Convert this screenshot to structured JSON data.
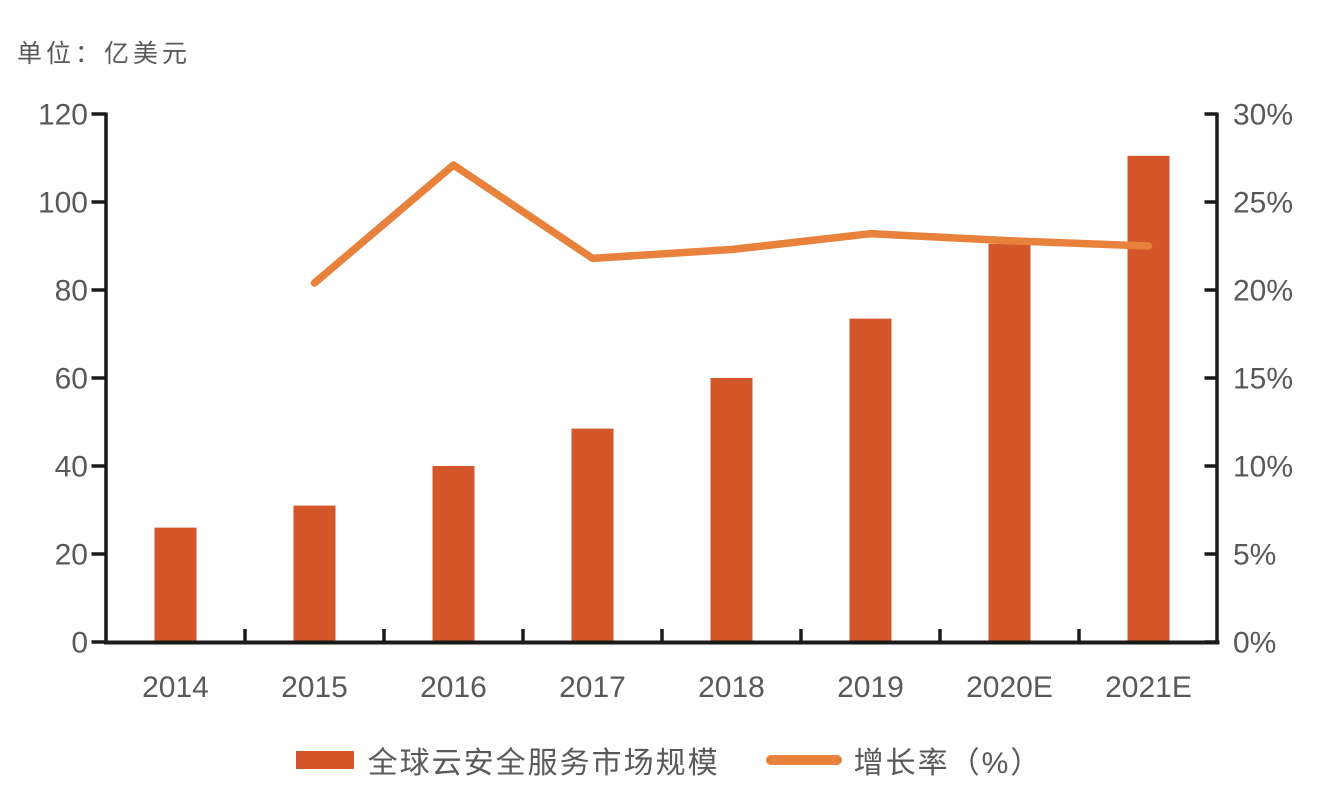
{
  "page": {
    "background": "#ffffff"
  },
  "unit_label": "单位：亿美元",
  "legend": {
    "bar_label": "全球云安全服务市场规模",
    "line_label": "增长率（%）"
  },
  "chart_data": {
    "type": "combo",
    "subtype": "bar+line",
    "title": "",
    "unit": "亿美元",
    "categories": [
      "2014",
      "2015",
      "2016",
      "2017",
      "2018",
      "2019",
      "2020E",
      "2021E"
    ],
    "series": [
      {
        "name": "全球云安全服务市场规模",
        "type": "bar",
        "axis": "left",
        "color": "#d4572b",
        "values": [
          26,
          31,
          40,
          48.5,
          60,
          73.5,
          90.5,
          110.5
        ]
      },
      {
        "name": "增长率（%）",
        "type": "line",
        "axis": "right",
        "color": "#e8813c",
        "values": [
          null,
          20.4,
          27.1,
          21.8,
          22.3,
          23.2,
          22.8,
          22.5
        ]
      }
    ],
    "left_axis": {
      "min": 0,
      "max": 120,
      "step": 20,
      "tick_labels": [
        "0",
        "20",
        "40",
        "60",
        "80",
        "100",
        "120"
      ]
    },
    "right_axis": {
      "min": 0,
      "max": 30,
      "step": 5,
      "tick_labels": [
        "0%",
        "5%",
        "10%",
        "15%",
        "20%",
        "25%",
        "30%"
      ]
    },
    "x_axis": {
      "tick_labels": [
        "2014",
        "2015",
        "2016",
        "2017",
        "2018",
        "2019",
        "2020E",
        "2021E"
      ]
    },
    "grid": false,
    "legend_position": "bottom",
    "colors": {
      "axis": "#1a1a1a",
      "text": "#595959",
      "bar": "#d4572b",
      "line": "#e8813c"
    }
  }
}
